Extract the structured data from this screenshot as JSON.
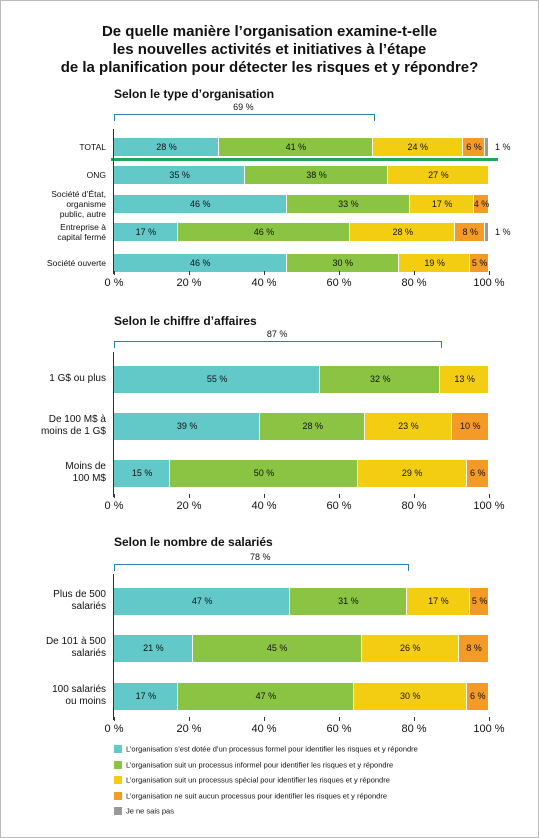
{
  "title": "De quelle manière l’organisation examine-t-elle\nles nouvelles activités et initiatives à l’étape\nde la planification pour détecter les risques et y répondre?",
  "chart_data": [
    {
      "type": "bar",
      "orientation": "horizontal",
      "stacked": true,
      "subtitle": "Selon le type d’organisation",
      "categories": [
        "TOTAL",
        "ONG",
        "Société d’État,\norganisme\npublic, autre",
        "Entreprise à\ncapital fermé",
        "Société ouverte"
      ],
      "series": [
        {
          "name": "L’organisation s’est dotée d’un processus formel pour identifier les risques et y répondre",
          "color": "#62c8c8",
          "values": [
            28,
            35,
            46,
            17,
            46
          ],
          "value_labels": [
            "28 %",
            "35 %",
            "46 %",
            "17 %",
            "46 %"
          ]
        },
        {
          "name": "L’organisation suit un processus informel pour identifier les risques et y répondre",
          "color": "#8bc443",
          "values": [
            41,
            38,
            33,
            46,
            30
          ],
          "value_labels": [
            "41 %",
            "38 %",
            "33 %",
            "46 %",
            "30 %"
          ]
        },
        {
          "name": "L’organisation suit un processus spécial pour identifier les risques et y répondre",
          "color": "#f2cd12",
          "values": [
            24,
            27,
            17,
            28,
            19
          ],
          "value_labels": [
            "24 %",
            "27 %",
            "17 %",
            "28 %",
            "19 %"
          ]
        },
        {
          "name": "L’organisation ne suit aucun processus pour identifier les risques et y répondre",
          "color": "#f39a27",
          "values": [
            6,
            null,
            4,
            8,
            5
          ],
          "value_labels": [
            "6 %",
            null,
            "4 %",
            "8 %",
            "5 %"
          ]
        },
        {
          "name": "Je ne sais pas",
          "color": "#999999",
          "values": [
            1,
            null,
            null,
            1,
            null
          ],
          "value_labels": [
            "1 %",
            null,
            null,
            "1 %",
            null
          ]
        }
      ],
      "xlim": [
        0,
        100
      ],
      "xticks": [
        {
          "value": 0,
          "label": "0 %"
        },
        {
          "value": 20,
          "label": "20 %"
        },
        {
          "value": 40,
          "label": "40 %"
        },
        {
          "value": 60,
          "label": "60 %"
        },
        {
          "value": 80,
          "label": "80 %"
        },
        {
          "value": 100,
          "label": "100 %"
        }
      ],
      "annotation": {
        "value": 69,
        "label": "69 %"
      }
    },
    {
      "type": "bar",
      "orientation": "horizontal",
      "stacked": true,
      "subtitle": "Selon le chiffre d’affaires",
      "categories": [
        "1 G$ ou plus",
        "De 100 M$ à\nmoins de 1 G$",
        "Moins de\n100 M$"
      ],
      "series": [
        {
          "name": "L’organisation s’est dotée d’un processus formel pour identifier les risques et y répondre",
          "color": "#62c8c8",
          "values": [
            55,
            39,
            15
          ],
          "value_labels": [
            "55 %",
            "39 %",
            "15 %"
          ]
        },
        {
          "name": "L’organisation suit un processus informel pour identifier les risques et y répondre",
          "color": "#8bc443",
          "values": [
            32,
            28,
            50
          ],
          "value_labels": [
            "32 %",
            "28 %",
            "50 %"
          ]
        },
        {
          "name": "L’organisation suit un processus spécial pour identifier les risques et y répondre",
          "color": "#f2cd12",
          "values": [
            13,
            23,
            29
          ],
          "value_labels": [
            "13 %",
            "23 %",
            "29 %"
          ]
        },
        {
          "name": "L’organisation ne suit aucun processus pour identifier les risques et y répondre",
          "color": "#f39a27",
          "values": [
            null,
            10,
            6
          ],
          "value_labels": [
            null,
            "10 %",
            "6 %"
          ]
        }
      ],
      "xlim": [
        0,
        100
      ],
      "xticks": [
        {
          "value": 0,
          "label": "0 %"
        },
        {
          "value": 20,
          "label": "20 %"
        },
        {
          "value": 40,
          "label": "40 %"
        },
        {
          "value": 60,
          "label": "60 %"
        },
        {
          "value": 80,
          "label": "80 %"
        },
        {
          "value": 100,
          "label": "100 %"
        }
      ],
      "annotation": {
        "value": 87,
        "label": "87 %"
      }
    },
    {
      "type": "bar",
      "orientation": "horizontal",
      "stacked": true,
      "subtitle": "Selon le nombre de salariés",
      "categories": [
        "Plus de 500\nsalariés",
        "De 101 à 500\nsalariés",
        "100 salariés\nou moins"
      ],
      "series": [
        {
          "name": "L’organisation s’est dotée d’un processus formel pour identifier les risques et y répondre",
          "color": "#62c8c8",
          "values": [
            47,
            21,
            17
          ],
          "value_labels": [
            "47 %",
            "21 %",
            "17 %"
          ]
        },
        {
          "name": "L’organisation suit un processus informel pour identifier les risques et y répondre",
          "color": "#8bc443",
          "values": [
            31,
            45,
            47
          ],
          "value_labels": [
            "31 %",
            "45 %",
            "47 %"
          ]
        },
        {
          "name": "L’organisation suit un processus spécial pour identifier les risques et y répondre",
          "color": "#f2cd12",
          "values": [
            17,
            26,
            30
          ],
          "value_labels": [
            "17 %",
            "26 %",
            "30 %"
          ]
        },
        {
          "name": "L’organisation ne suit aucun processus pour identifier les risques et y répondre",
          "color": "#f39a27",
          "values": [
            5,
            8,
            6
          ],
          "value_labels": [
            "5 %",
            "8 %",
            "6 %"
          ]
        }
      ],
      "xlim": [
        0,
        100
      ],
      "xticks": [
        {
          "value": 0,
          "label": "0 %"
        },
        {
          "value": 20,
          "label": "20 %"
        },
        {
          "value": 40,
          "label": "40 %"
        },
        {
          "value": 60,
          "label": "60 %"
        },
        {
          "value": 80,
          "label": "80 %"
        },
        {
          "value": 100,
          "label": "100 %"
        }
      ],
      "annotation": {
        "value": 78,
        "label": "78 %"
      }
    }
  ]
}
